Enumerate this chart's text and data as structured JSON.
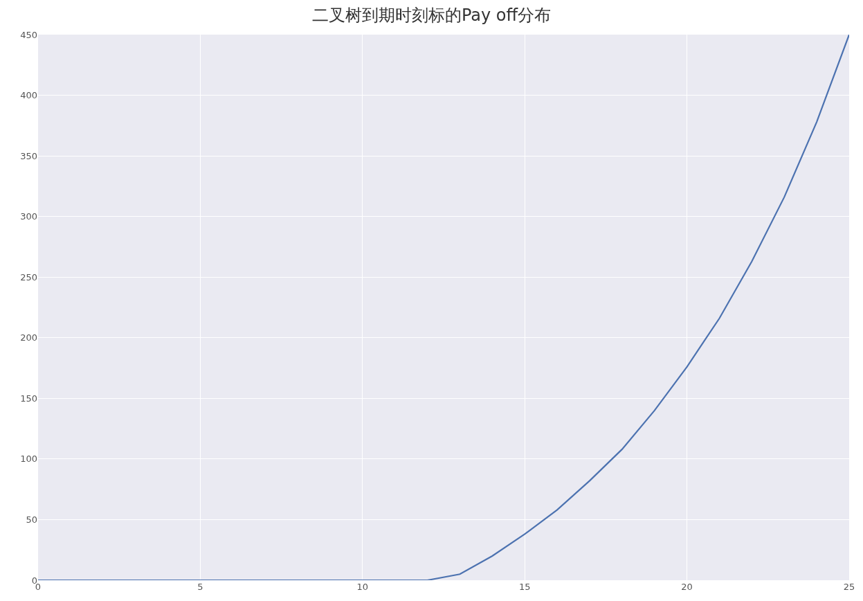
{
  "chart_data": {
    "type": "line",
    "title": "二叉树到期时刻标的Pay off分布",
    "x": [
      0,
      1,
      2,
      3,
      4,
      5,
      6,
      7,
      8,
      9,
      10,
      11,
      12,
      13,
      14,
      15,
      16,
      17,
      18,
      19,
      20,
      21,
      22,
      23,
      24,
      25
    ],
    "series": [
      {
        "color": "#4c72b0",
        "values": [
          0,
          0,
          0,
          0,
          0,
          0,
          0,
          0,
          0,
          0,
          0,
          0,
          0,
          5,
          20,
          38,
          58,
          82,
          108,
          140,
          176,
          216,
          263,
          316,
          378,
          450
        ]
      }
    ],
    "xlim": [
      0,
      25
    ],
    "xticks": [
      0,
      5,
      10,
      15,
      20,
      25
    ],
    "ylim": [
      0,
      450
    ],
    "yticks": [
      0,
      50,
      100,
      150,
      200,
      250,
      300,
      350,
      400,
      450
    ],
    "grid": true,
    "line_style": "solid"
  }
}
